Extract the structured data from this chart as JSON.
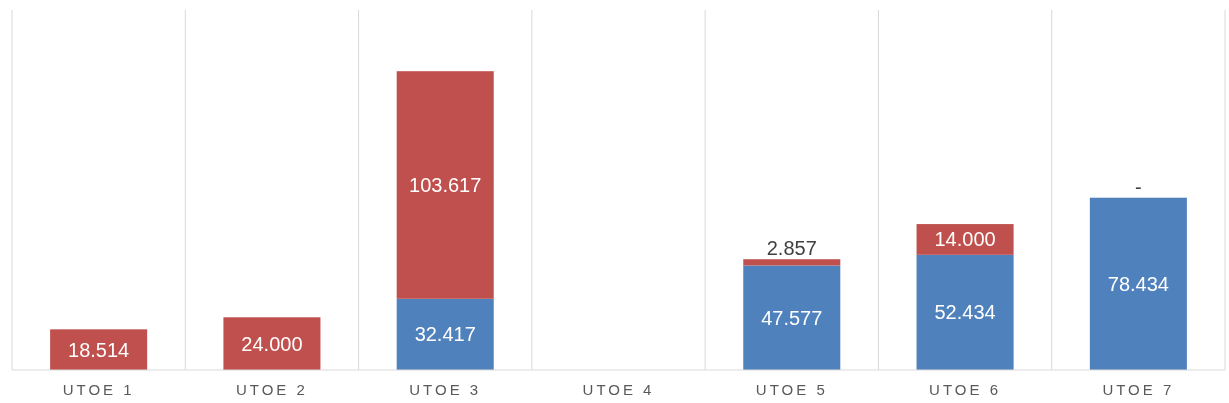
{
  "chart_data": {
    "type": "bar",
    "stacked": true,
    "grid": "x",
    "categories": [
      "UTOE 1",
      "UTOE 2",
      "UTOE 3",
      "UTOE 4",
      "UTOE 5",
      "UTOE 6",
      "UTOE 7"
    ],
    "series": [
      {
        "color": "#4f81bd",
        "values": [
          null,
          null,
          32417,
          null,
          47577,
          52434,
          78434
        ],
        "value_labels": [
          null,
          null,
          "32.417",
          null,
          "47.577",
          "52.434",
          "78.434"
        ]
      },
      {
        "color": "#c0504d",
        "values": [
          18514,
          24000,
          103617,
          null,
          2857,
          14000,
          0
        ],
        "value_labels": [
          "18.514",
          "24.000",
          "103.617",
          null,
          "2.857",
          "14.000",
          "-"
        ]
      }
    ]
  }
}
